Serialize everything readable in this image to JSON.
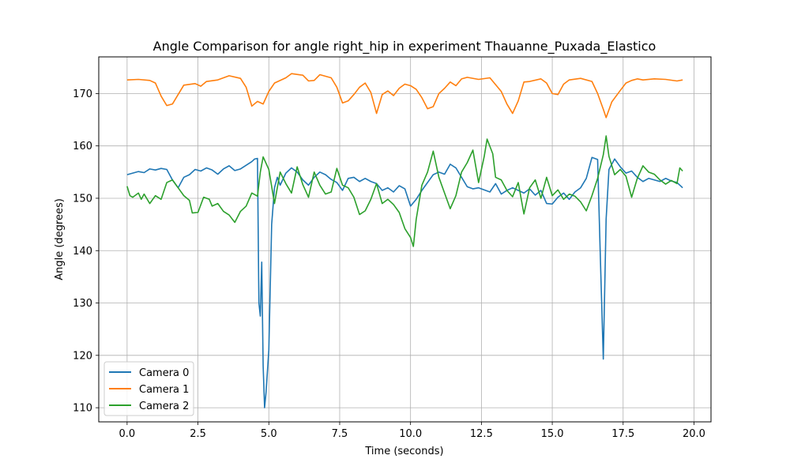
{
  "chart_data": {
    "type": "line",
    "title": "Angle Comparison for angle right_hip in experiment Thauanne_Puxada_Elastico",
    "xlabel": "Time (seconds)",
    "ylabel": "Angle (degrees)",
    "xlim": [
      -1.0,
      20.6
    ],
    "ylim": [
      107.3,
      177.0
    ],
    "xticks": [
      0.0,
      2.5,
      5.0,
      7.5,
      10.0,
      12.5,
      15.0,
      17.5,
      20.0
    ],
    "xtick_labels": [
      "0.0",
      "2.5",
      "5.0",
      "7.5",
      "10.0",
      "12.5",
      "15.0",
      "17.5",
      "20.0"
    ],
    "yticks": [
      110,
      120,
      130,
      140,
      150,
      160,
      170
    ],
    "ytick_labels": [
      "110",
      "120",
      "130",
      "140",
      "150",
      "160",
      "170"
    ],
    "grid": true,
    "legend_position": "lower-left",
    "series": [
      {
        "name": "Camera 0",
        "color": "#1f77b4",
        "points": [
          [
            0.0,
            154.5
          ],
          [
            0.2,
            154.8
          ],
          [
            0.4,
            155.1
          ],
          [
            0.6,
            154.9
          ],
          [
            0.8,
            155.6
          ],
          [
            1.0,
            155.4
          ],
          [
            1.2,
            155.7
          ],
          [
            1.4,
            155.5
          ],
          [
            1.6,
            153.5
          ],
          [
            1.8,
            152.0
          ],
          [
            2.0,
            154.0
          ],
          [
            2.2,
            154.5
          ],
          [
            2.4,
            155.5
          ],
          [
            2.6,
            155.2
          ],
          [
            2.8,
            155.8
          ],
          [
            3.0,
            155.4
          ],
          [
            3.2,
            154.6
          ],
          [
            3.4,
            155.6
          ],
          [
            3.6,
            156.2
          ],
          [
            3.8,
            155.3
          ],
          [
            4.0,
            155.6
          ],
          [
            4.2,
            156.3
          ],
          [
            4.4,
            157.0
          ],
          [
            4.5,
            157.5
          ],
          [
            4.6,
            157.6
          ],
          [
            4.65,
            130.0
          ],
          [
            4.7,
            127.5
          ],
          [
            4.75,
            137.8
          ],
          [
            4.8,
            118.0
          ],
          [
            4.85,
            110.0
          ],
          [
            4.9,
            112.8
          ],
          [
            5.0,
            121.0
          ],
          [
            5.1,
            145.0
          ],
          [
            5.2,
            152.0
          ],
          [
            5.3,
            154.0
          ],
          [
            5.4,
            152.5
          ],
          [
            5.6,
            154.8
          ],
          [
            5.8,
            155.8
          ],
          [
            6.0,
            155.0
          ],
          [
            6.2,
            153.5
          ],
          [
            6.4,
            152.5
          ],
          [
            6.6,
            154.0
          ],
          [
            6.8,
            155.0
          ],
          [
            7.0,
            154.5
          ],
          [
            7.2,
            153.6
          ],
          [
            7.4,
            153.0
          ],
          [
            7.6,
            151.5
          ],
          [
            7.8,
            153.8
          ],
          [
            8.0,
            154.0
          ],
          [
            8.2,
            153.2
          ],
          [
            8.4,
            153.8
          ],
          [
            8.6,
            153.2
          ],
          [
            8.8,
            152.8
          ],
          [
            9.0,
            151.5
          ],
          [
            9.2,
            152.0
          ],
          [
            9.4,
            151.2
          ],
          [
            9.6,
            152.4
          ],
          [
            9.8,
            151.8
          ],
          [
            10.0,
            148.5
          ],
          [
            10.2,
            149.8
          ],
          [
            10.4,
            151.5
          ],
          [
            10.6,
            153.0
          ],
          [
            10.8,
            154.5
          ],
          [
            11.0,
            155.0
          ],
          [
            11.2,
            154.6
          ],
          [
            11.4,
            156.5
          ],
          [
            11.6,
            155.8
          ],
          [
            11.8,
            154.0
          ],
          [
            12.0,
            152.2
          ],
          [
            12.2,
            151.8
          ],
          [
            12.4,
            152.0
          ],
          [
            12.6,
            151.6
          ],
          [
            12.8,
            151.2
          ],
          [
            13.0,
            152.8
          ],
          [
            13.2,
            150.8
          ],
          [
            13.4,
            151.5
          ],
          [
            13.6,
            152.0
          ],
          [
            13.8,
            151.5
          ],
          [
            14.0,
            151.0
          ],
          [
            14.2,
            151.8
          ],
          [
            14.4,
            150.6
          ],
          [
            14.6,
            151.5
          ],
          [
            14.8,
            149.0
          ],
          [
            15.0,
            148.9
          ],
          [
            15.2,
            150.2
          ],
          [
            15.4,
            151.0
          ],
          [
            15.6,
            149.8
          ],
          [
            15.8,
            151.2
          ],
          [
            16.0,
            152.0
          ],
          [
            16.2,
            153.8
          ],
          [
            16.4,
            157.8
          ],
          [
            16.6,
            157.4
          ],
          [
            16.7,
            138.0
          ],
          [
            16.8,
            119.3
          ],
          [
            16.9,
            146.0
          ],
          [
            17.0,
            155.5
          ],
          [
            17.2,
            157.5
          ],
          [
            17.4,
            156.0
          ],
          [
            17.6,
            154.8
          ],
          [
            17.8,
            155.2
          ],
          [
            18.0,
            154.0
          ],
          [
            18.2,
            153.2
          ],
          [
            18.4,
            153.8
          ],
          [
            18.6,
            153.5
          ],
          [
            18.8,
            153.2
          ],
          [
            19.0,
            153.8
          ],
          [
            19.2,
            153.3
          ],
          [
            19.4,
            153.0
          ],
          [
            19.6,
            152.0
          ]
        ]
      },
      {
        "name": "Camera 1",
        "color": "#ff7f0e",
        "points": [
          [
            0.0,
            172.6
          ],
          [
            0.4,
            172.7
          ],
          [
            0.8,
            172.5
          ],
          [
            1.0,
            172.0
          ],
          [
            1.2,
            169.5
          ],
          [
            1.4,
            167.7
          ],
          [
            1.6,
            168.0
          ],
          [
            1.8,
            169.8
          ],
          [
            2.0,
            171.6
          ],
          [
            2.4,
            171.9
          ],
          [
            2.6,
            171.4
          ],
          [
            2.8,
            172.3
          ],
          [
            3.2,
            172.6
          ],
          [
            3.6,
            173.4
          ],
          [
            4.0,
            172.9
          ],
          [
            4.2,
            171.2
          ],
          [
            4.4,
            167.6
          ],
          [
            4.6,
            168.5
          ],
          [
            4.8,
            168.0
          ],
          [
            5.0,
            170.4
          ],
          [
            5.2,
            172.0
          ],
          [
            5.6,
            173.0
          ],
          [
            5.8,
            173.8
          ],
          [
            6.2,
            173.5
          ],
          [
            6.4,
            172.4
          ],
          [
            6.6,
            172.5
          ],
          [
            6.8,
            173.6
          ],
          [
            7.2,
            173.0
          ],
          [
            7.4,
            171.2
          ],
          [
            7.6,
            168.2
          ],
          [
            7.8,
            168.6
          ],
          [
            8.0,
            169.8
          ],
          [
            8.2,
            171.2
          ],
          [
            8.4,
            172.0
          ],
          [
            8.6,
            170.2
          ],
          [
            8.8,
            166.2
          ],
          [
            9.0,
            169.8
          ],
          [
            9.2,
            170.5
          ],
          [
            9.4,
            169.6
          ],
          [
            9.6,
            171.0
          ],
          [
            9.8,
            171.8
          ],
          [
            10.0,
            171.5
          ],
          [
            10.2,
            170.8
          ],
          [
            10.4,
            169.2
          ],
          [
            10.6,
            167.1
          ],
          [
            10.8,
            167.5
          ],
          [
            11.0,
            170.0
          ],
          [
            11.2,
            171.0
          ],
          [
            11.4,
            172.2
          ],
          [
            11.6,
            171.5
          ],
          [
            11.8,
            172.8
          ],
          [
            12.0,
            173.1
          ],
          [
            12.4,
            172.7
          ],
          [
            12.8,
            173.0
          ],
          [
            13.0,
            171.7
          ],
          [
            13.2,
            170.4
          ],
          [
            13.4,
            168.0
          ],
          [
            13.6,
            166.2
          ],
          [
            13.8,
            168.6
          ],
          [
            14.0,
            172.2
          ],
          [
            14.2,
            172.3
          ],
          [
            14.6,
            172.8
          ],
          [
            14.8,
            172.0
          ],
          [
            15.0,
            170.0
          ],
          [
            15.2,
            169.8
          ],
          [
            15.4,
            171.8
          ],
          [
            15.6,
            172.6
          ],
          [
            16.0,
            172.9
          ],
          [
            16.4,
            172.3
          ],
          [
            16.6,
            170.0
          ],
          [
            16.8,
            167.0
          ],
          [
            16.9,
            165.4
          ],
          [
            17.1,
            168.4
          ],
          [
            17.4,
            170.6
          ],
          [
            17.6,
            172.0
          ],
          [
            17.8,
            172.5
          ],
          [
            18.0,
            172.8
          ],
          [
            18.2,
            172.6
          ],
          [
            18.6,
            172.8
          ],
          [
            19.0,
            172.7
          ],
          [
            19.4,
            172.4
          ],
          [
            19.6,
            172.6
          ]
        ]
      },
      {
        "name": "Camera 2",
        "color": "#2ca02c",
        "points": [
          [
            0.0,
            152.3
          ],
          [
            0.1,
            150.5
          ],
          [
            0.2,
            150.2
          ],
          [
            0.4,
            151.0
          ],
          [
            0.5,
            149.8
          ],
          [
            0.6,
            150.8
          ],
          [
            0.8,
            149.0
          ],
          [
            1.0,
            150.5
          ],
          [
            1.2,
            149.8
          ],
          [
            1.4,
            153.0
          ],
          [
            1.6,
            153.5
          ],
          [
            1.8,
            152.0
          ],
          [
            2.0,
            150.5
          ],
          [
            2.2,
            149.6
          ],
          [
            2.3,
            147.2
          ],
          [
            2.5,
            147.3
          ],
          [
            2.7,
            150.2
          ],
          [
            2.9,
            149.8
          ],
          [
            3.0,
            148.5
          ],
          [
            3.2,
            149.0
          ],
          [
            3.4,
            147.5
          ],
          [
            3.6,
            146.8
          ],
          [
            3.8,
            145.4
          ],
          [
            4.0,
            147.5
          ],
          [
            4.2,
            148.5
          ],
          [
            4.4,
            151.0
          ],
          [
            4.6,
            150.4
          ],
          [
            4.7,
            155.0
          ],
          [
            4.8,
            157.9
          ],
          [
            5.0,
            155.5
          ],
          [
            5.2,
            149.0
          ],
          [
            5.4,
            155.0
          ],
          [
            5.6,
            152.8
          ],
          [
            5.8,
            151.0
          ],
          [
            6.0,
            156.0
          ],
          [
            6.2,
            152.6
          ],
          [
            6.4,
            150.2
          ],
          [
            6.6,
            155.0
          ],
          [
            6.8,
            152.5
          ],
          [
            7.0,
            150.8
          ],
          [
            7.2,
            151.2
          ],
          [
            7.4,
            155.7
          ],
          [
            7.6,
            152.5
          ],
          [
            7.8,
            152.0
          ],
          [
            8.0,
            150.2
          ],
          [
            8.2,
            146.9
          ],
          [
            8.4,
            147.6
          ],
          [
            8.6,
            149.8
          ],
          [
            8.8,
            152.8
          ],
          [
            9.0,
            149.0
          ],
          [
            9.2,
            149.8
          ],
          [
            9.4,
            148.8
          ],
          [
            9.6,
            147.3
          ],
          [
            9.8,
            144.2
          ],
          [
            10.0,
            142.5
          ],
          [
            10.1,
            140.8
          ],
          [
            10.2,
            146.0
          ],
          [
            10.4,
            152.5
          ],
          [
            10.6,
            155.0
          ],
          [
            10.8,
            159.0
          ],
          [
            11.0,
            154.0
          ],
          [
            11.2,
            151.0
          ],
          [
            11.4,
            148.0
          ],
          [
            11.6,
            150.5
          ],
          [
            11.8,
            155.0
          ],
          [
            12.0,
            156.8
          ],
          [
            12.2,
            159.2
          ],
          [
            12.4,
            153.0
          ],
          [
            12.6,
            158.0
          ],
          [
            12.7,
            161.3
          ],
          [
            12.9,
            158.5
          ],
          [
            13.0,
            154.0
          ],
          [
            13.2,
            153.5
          ],
          [
            13.4,
            151.5
          ],
          [
            13.6,
            150.3
          ],
          [
            13.8,
            153.0
          ],
          [
            14.0,
            147.0
          ],
          [
            14.2,
            152.0
          ],
          [
            14.4,
            153.5
          ],
          [
            14.6,
            150.0
          ],
          [
            14.8,
            154.0
          ],
          [
            15.0,
            150.5
          ],
          [
            15.2,
            151.6
          ],
          [
            15.4,
            149.8
          ],
          [
            15.6,
            150.8
          ],
          [
            15.8,
            150.4
          ],
          [
            16.0,
            149.3
          ],
          [
            16.2,
            147.6
          ],
          [
            16.4,
            150.5
          ],
          [
            16.6,
            153.8
          ],
          [
            16.8,
            158.3
          ],
          [
            16.9,
            161.9
          ],
          [
            17.0,
            158.0
          ],
          [
            17.2,
            154.5
          ],
          [
            17.4,
            155.5
          ],
          [
            17.6,
            154.2
          ],
          [
            17.8,
            150.2
          ],
          [
            18.0,
            153.8
          ],
          [
            18.2,
            156.2
          ],
          [
            18.4,
            155.0
          ],
          [
            18.6,
            154.6
          ],
          [
            18.8,
            153.5
          ],
          [
            19.0,
            152.7
          ],
          [
            19.2,
            153.4
          ],
          [
            19.4,
            152.8
          ],
          [
            19.5,
            155.8
          ],
          [
            19.6,
            155.2
          ]
        ]
      }
    ]
  }
}
